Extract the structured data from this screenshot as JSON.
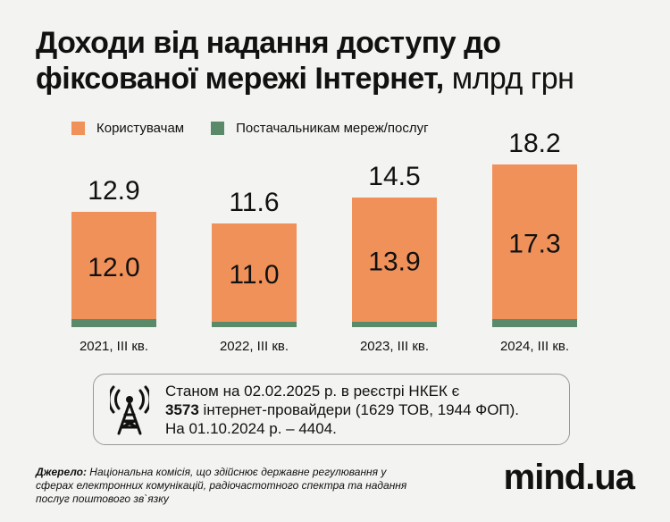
{
  "title": {
    "main": "Доходи від надання доступу до фіксованої мережі Інтернет,",
    "unit": "млрд грн"
  },
  "colors": {
    "users": "#f0915a",
    "providers": "#5a8a6a",
    "text": "#111111",
    "background": "#f3f3f1"
  },
  "chart_data": {
    "type": "bar",
    "stacked": true,
    "categories": [
      "2021, III кв.",
      "2022, III кв.",
      "2023, III кв.",
      "2024, III кв."
    ],
    "series": [
      {
        "name": "Користувачам",
        "values": [
          12.0,
          11.0,
          13.9,
          17.3
        ],
        "labels": [
          "12.0",
          "11.0",
          "13.9",
          "17.3"
        ]
      },
      {
        "name": "Постачальникам мереж/послуг",
        "values": [
          0.9,
          0.6,
          0.6,
          0.9
        ]
      }
    ],
    "totals": [
      12.9,
      11.6,
      14.5,
      18.2
    ],
    "total_labels": [
      "12.9",
      "11.6",
      "14.5",
      "18.2"
    ],
    "ylim": [
      0,
      18.2
    ],
    "legend_position": "top-left",
    "grid": false
  },
  "callout": {
    "line1": "Станом на 02.02.2025 р. в реєстрі НКЕК є",
    "count": "3573",
    "line2_rest": " інтернет-провайдери (1629 ТОВ, 1944 ФОП).",
    "line3": "На 01.10.2024 р. – 4404.",
    "icon": "antenna-tower-icon"
  },
  "source": {
    "label": "Джерело:",
    "text": " Національна комісія, що здійснює державне регулювання у сферах електронних комунікацій, радіочастотного спектра та надання послуг поштового зв`язку"
  },
  "logo": "mind.ua"
}
